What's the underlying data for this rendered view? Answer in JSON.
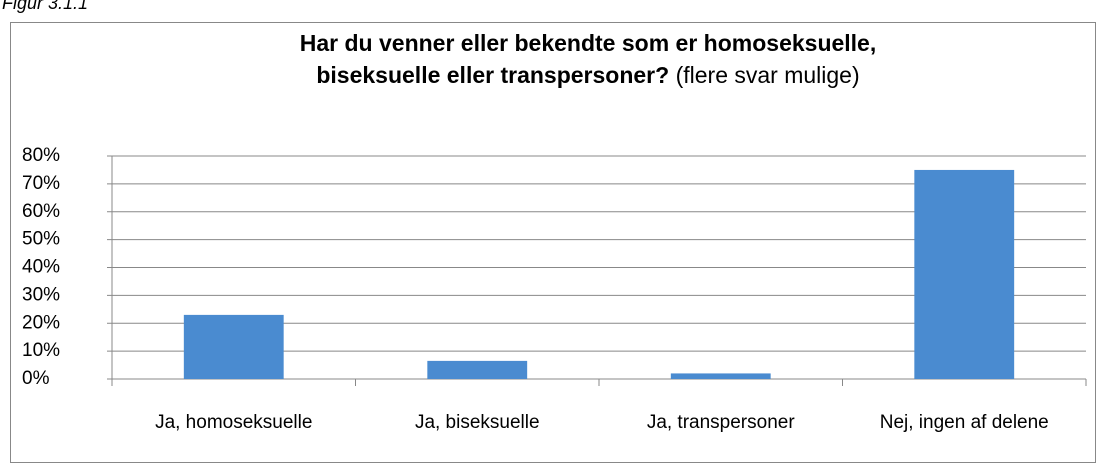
{
  "caption": "Figur 3.1.1",
  "chart_data": {
    "type": "bar",
    "title": [
      "Har du venner eller bekendte som er homoseksuelle,",
      "biseksuelle eller transpersoner?"
    ],
    "subtitle": "(flere svar mulige)",
    "categories": [
      "Ja, homoseksuelle",
      "Ja, biseksuelle",
      "Ja, transpersoner",
      "Nej, ingen af delene"
    ],
    "values": [
      23,
      6.5,
      2,
      75
    ],
    "color": "#4a8bd0",
    "ylim": [
      0,
      80
    ],
    "yticks": [
      {
        "value": 0,
        "label": "0%"
      },
      {
        "value": 10,
        "label": "10%"
      },
      {
        "value": 20,
        "label": "20%"
      },
      {
        "value": 30,
        "label": "30%"
      },
      {
        "value": 40,
        "label": "40%"
      },
      {
        "value": 50,
        "label": "50%"
      },
      {
        "value": 60,
        "label": "60%"
      },
      {
        "value": 70,
        "label": "70%"
      },
      {
        "value": 80,
        "label": "80%"
      }
    ],
    "grid": true
  }
}
